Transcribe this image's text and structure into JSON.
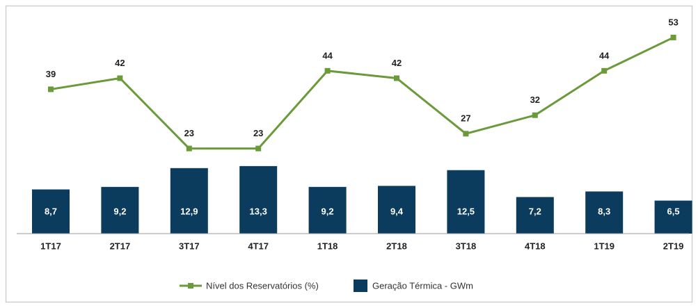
{
  "chart_data": {
    "type": "combo",
    "categories": [
      "1T17",
      "2T17",
      "3T17",
      "4T17",
      "1T18",
      "2T18",
      "3T18",
      "4T18",
      "1T19",
      "2T19"
    ],
    "series": [
      {
        "name": "Nível dos Reservatórios (%)",
        "type": "line",
        "axis": "y2",
        "color": "#6a9a3a",
        "values": [
          39,
          42,
          23,
          23,
          44,
          42,
          27,
          32,
          44,
          53
        ]
      },
      {
        "name": "Geração Térmica - GWm",
        "type": "bar",
        "axis": "y",
        "color": "#0b3c5d",
        "values": [
          8.7,
          9.2,
          12.9,
          13.3,
          9.2,
          9.4,
          12.5,
          7.2,
          8.3,
          6.5
        ],
        "value_labels": [
          "8,7",
          "9,2",
          "12,9",
          "13,3",
          "9,2",
          "9,4",
          "12,5",
          "7,2",
          "8,3",
          "6,5"
        ]
      }
    ],
    "ylim": [
      0,
      43
    ],
    "y2lim": [
      0,
      59
    ],
    "legend": "bottom"
  }
}
